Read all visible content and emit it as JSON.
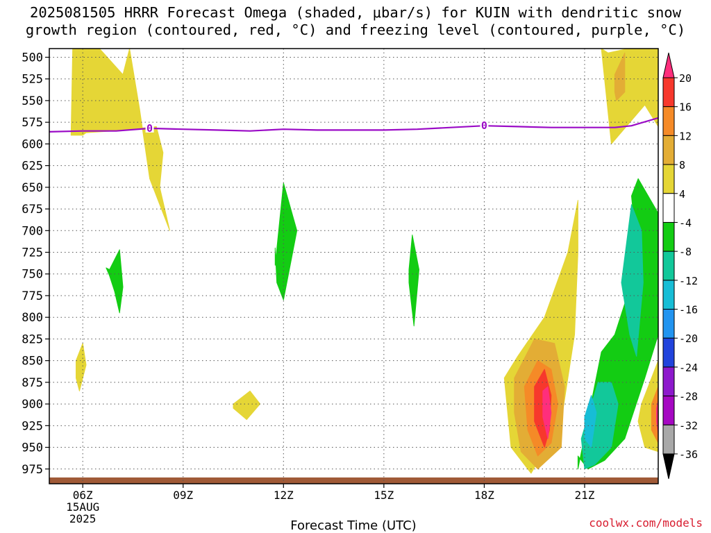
{
  "title_line1": "2025081505 HRRR Forecast Omega (shaded, μbar/s) for KUIN with dendritic snow",
  "title_line2": "growth region (contoured, red, °C) and freezing level (contoured, purple, °C)",
  "credit": "coolwx.com/models",
  "chart_data": {
    "type": "contour-cross-section",
    "xlabel": "Forecast Time (UTC)",
    "ylabel": "",
    "x_ticks": [
      "06Z",
      "09Z",
      "12Z",
      "15Z",
      "18Z",
      "21Z"
    ],
    "x_ticks_hours": [
      6,
      9,
      12,
      15,
      18,
      21
    ],
    "x_date_label": [
      "15AUG",
      "2025"
    ],
    "xlim_hours": [
      5,
      23.2
    ],
    "y_ticks": [
      500,
      525,
      550,
      575,
      600,
      625,
      650,
      675,
      700,
      725,
      750,
      775,
      800,
      825,
      850,
      875,
      900,
      925,
      950,
      975
    ],
    "ylim_hpa": [
      490,
      992
    ],
    "y_direction": "inverted (pressure decreases upward)",
    "grid": "dotted",
    "colorbar": {
      "labels": [
        "20",
        "16",
        "12",
        "8",
        "4",
        "-4",
        "-8",
        "-12",
        "-16",
        "-20",
        "-24",
        "-28",
        "-32",
        "-36"
      ],
      "levels": [
        20,
        16,
        12,
        8,
        4,
        0,
        -4,
        -8,
        -12,
        -16,
        -20,
        -24,
        -28,
        -32,
        -36
      ],
      "colors": [
        "#ff2e7c",
        "#f7382c",
        "#f58a27",
        "#e3ad35",
        "#e5d636",
        "#ffffff",
        "#13cc13",
        "#12c89a",
        "#17bdd6",
        "#2294f0",
        "#2143dc",
        "#8d19cc",
        "#a508c2",
        "#a8a8a8",
        "#000000"
      ]
    },
    "freezing_level": {
      "label": "0",
      "color": "#9a0ac6",
      "hours": [
        5,
        6,
        7,
        8,
        9,
        10,
        11,
        12,
        13,
        14,
        15,
        16,
        17,
        18,
        19,
        20,
        21,
        21.9,
        22.4,
        23.2
      ],
      "hpa": [
        586,
        585,
        585,
        582,
        583,
        584,
        585,
        583,
        584,
        584,
        584,
        583,
        581,
        579,
        580,
        581,
        581,
        581,
        579,
        570
      ]
    },
    "omega_regions": [
      {
        "value": 4,
        "hours": [
          5.65,
          6,
          6.1,
          6.9,
          8.2,
          8.4,
          8.3,
          8.6,
          8.0,
          7.7,
          7.4,
          7.2,
          6.5,
          5.7
        ],
        "hpa": [
          590,
          590,
          587,
          585,
          580,
          610,
          650,
          700,
          640,
          560,
          490,
          520,
          490,
          490
        ]
      },
      {
        "value": 4,
        "hours": [
          5.8,
          6.0,
          6.1,
          5.9,
          5.8
        ],
        "hpa": [
          850,
          830,
          855,
          885,
          870
        ]
      },
      {
        "value": 4,
        "hours": [
          10.5,
          11.0,
          11.3,
          10.9,
          10.5
        ],
        "hpa": [
          900,
          885,
          900,
          918,
          905
        ]
      },
      {
        "value": 4,
        "hours": [
          18.6,
          19.0,
          19.8,
          20.5,
          20.8,
          20.8,
          20.7,
          20.3,
          19.4,
          18.8
        ],
        "hpa": [
          870,
          845,
          800,
          725,
          665,
          725,
          820,
          920,
          980,
          950
        ]
      },
      {
        "value": 4,
        "hours": [
          21.5,
          21.7,
          22.3,
          23.2,
          23.2,
          22.8,
          21.8
        ],
        "hpa": [
          490,
          495,
          490,
          490,
          580,
          555,
          600
        ]
      },
      {
        "value": 4,
        "hours": [
          22.7,
          23.2,
          23.2,
          22.8,
          22.6
        ],
        "hpa": [
          900,
          850,
          955,
          950,
          920
        ]
      },
      {
        "value": 8,
        "hours": [
          18.9,
          19.5,
          20.1,
          20.4,
          20.3,
          19.6,
          19.1,
          18.9
        ],
        "hpa": [
          870,
          825,
          830,
          880,
          950,
          975,
          955,
          910
        ]
      },
      {
        "value": 8,
        "hours": [
          21.9,
          22.2,
          22.2,
          21.95,
          21.9
        ],
        "hpa": [
          520,
          495,
          540,
          550,
          540
        ]
      },
      {
        "value": 12,
        "hours": [
          19.2,
          19.6,
          20.0,
          20.2,
          20.0,
          19.6,
          19.3
        ],
        "hpa": [
          880,
          850,
          860,
          900,
          945,
          960,
          930
        ]
      },
      {
        "value": 16,
        "hours": [
          19.5,
          19.8,
          20.0,
          19.95,
          19.8,
          19.5
        ],
        "hpa": [
          880,
          860,
          890,
          930,
          950,
          920
        ]
      },
      {
        "value": 20,
        "hours": [
          19.75,
          19.9,
          20.0,
          19.9,
          19.75
        ],
        "hpa": [
          885,
          880,
          910,
          940,
          915
        ]
      },
      {
        "value": 12,
        "hours": [
          23.0,
          23.2,
          23.2,
          23.0
        ],
        "hpa": [
          900,
          880,
          945,
          930
        ]
      },
      {
        "value": 20,
        "hours": [
          23.15,
          23.2,
          23.2,
          23.15
        ],
        "hpa": [
          905,
          895,
          935,
          920
        ]
      },
      {
        "value": -4,
        "hours": [
          6.8,
          7.1,
          7.2,
          7.1,
          6.95,
          6.8,
          6.7
        ],
        "hpa": [
          745,
          722,
          765,
          795,
          770,
          752,
          743
        ]
      },
      {
        "value": -4,
        "hours": [
          11.75,
          12.0,
          12.4,
          12.0,
          11.8,
          11.75
        ],
        "hpa": [
          740,
          645,
          700,
          780,
          760,
          720
        ]
      },
      {
        "value": -4,
        "hours": [
          15.75,
          15.85,
          16.05,
          15.9,
          15.75
        ],
        "hpa": [
          745,
          705,
          745,
          810,
          760
        ]
      },
      {
        "value": -4,
        "hours": [
          20.8,
          21.5,
          21.9,
          22.4,
          22.5,
          22.4,
          22.6,
          23.2,
          23.2,
          22.8,
          22.2,
          21.6,
          21.1,
          20.8
        ],
        "hpa": [
          975,
          840,
          820,
          760,
          700,
          660,
          640,
          680,
          820,
          870,
          940,
          965,
          975,
          960
        ]
      },
      {
        "value": -8,
        "hours": [
          20.9,
          21.4,
          21.8,
          22.0,
          21.8,
          21.3,
          21.0
        ],
        "hpa": [
          940,
          875,
          875,
          900,
          950,
          970,
          975
        ]
      },
      {
        "value": -8,
        "hours": [
          22.1,
          22.4,
          22.7,
          22.75,
          22.55,
          22.35
        ],
        "hpa": [
          760,
          670,
          700,
          760,
          845,
          820
        ]
      },
      {
        "value": -12,
        "hours": [
          21.0,
          21.2,
          21.35,
          21.2,
          21.0
        ],
        "hpa": [
          915,
          890,
          910,
          950,
          940
        ]
      }
    ],
    "surface_strip_color": "#a05a37"
  }
}
